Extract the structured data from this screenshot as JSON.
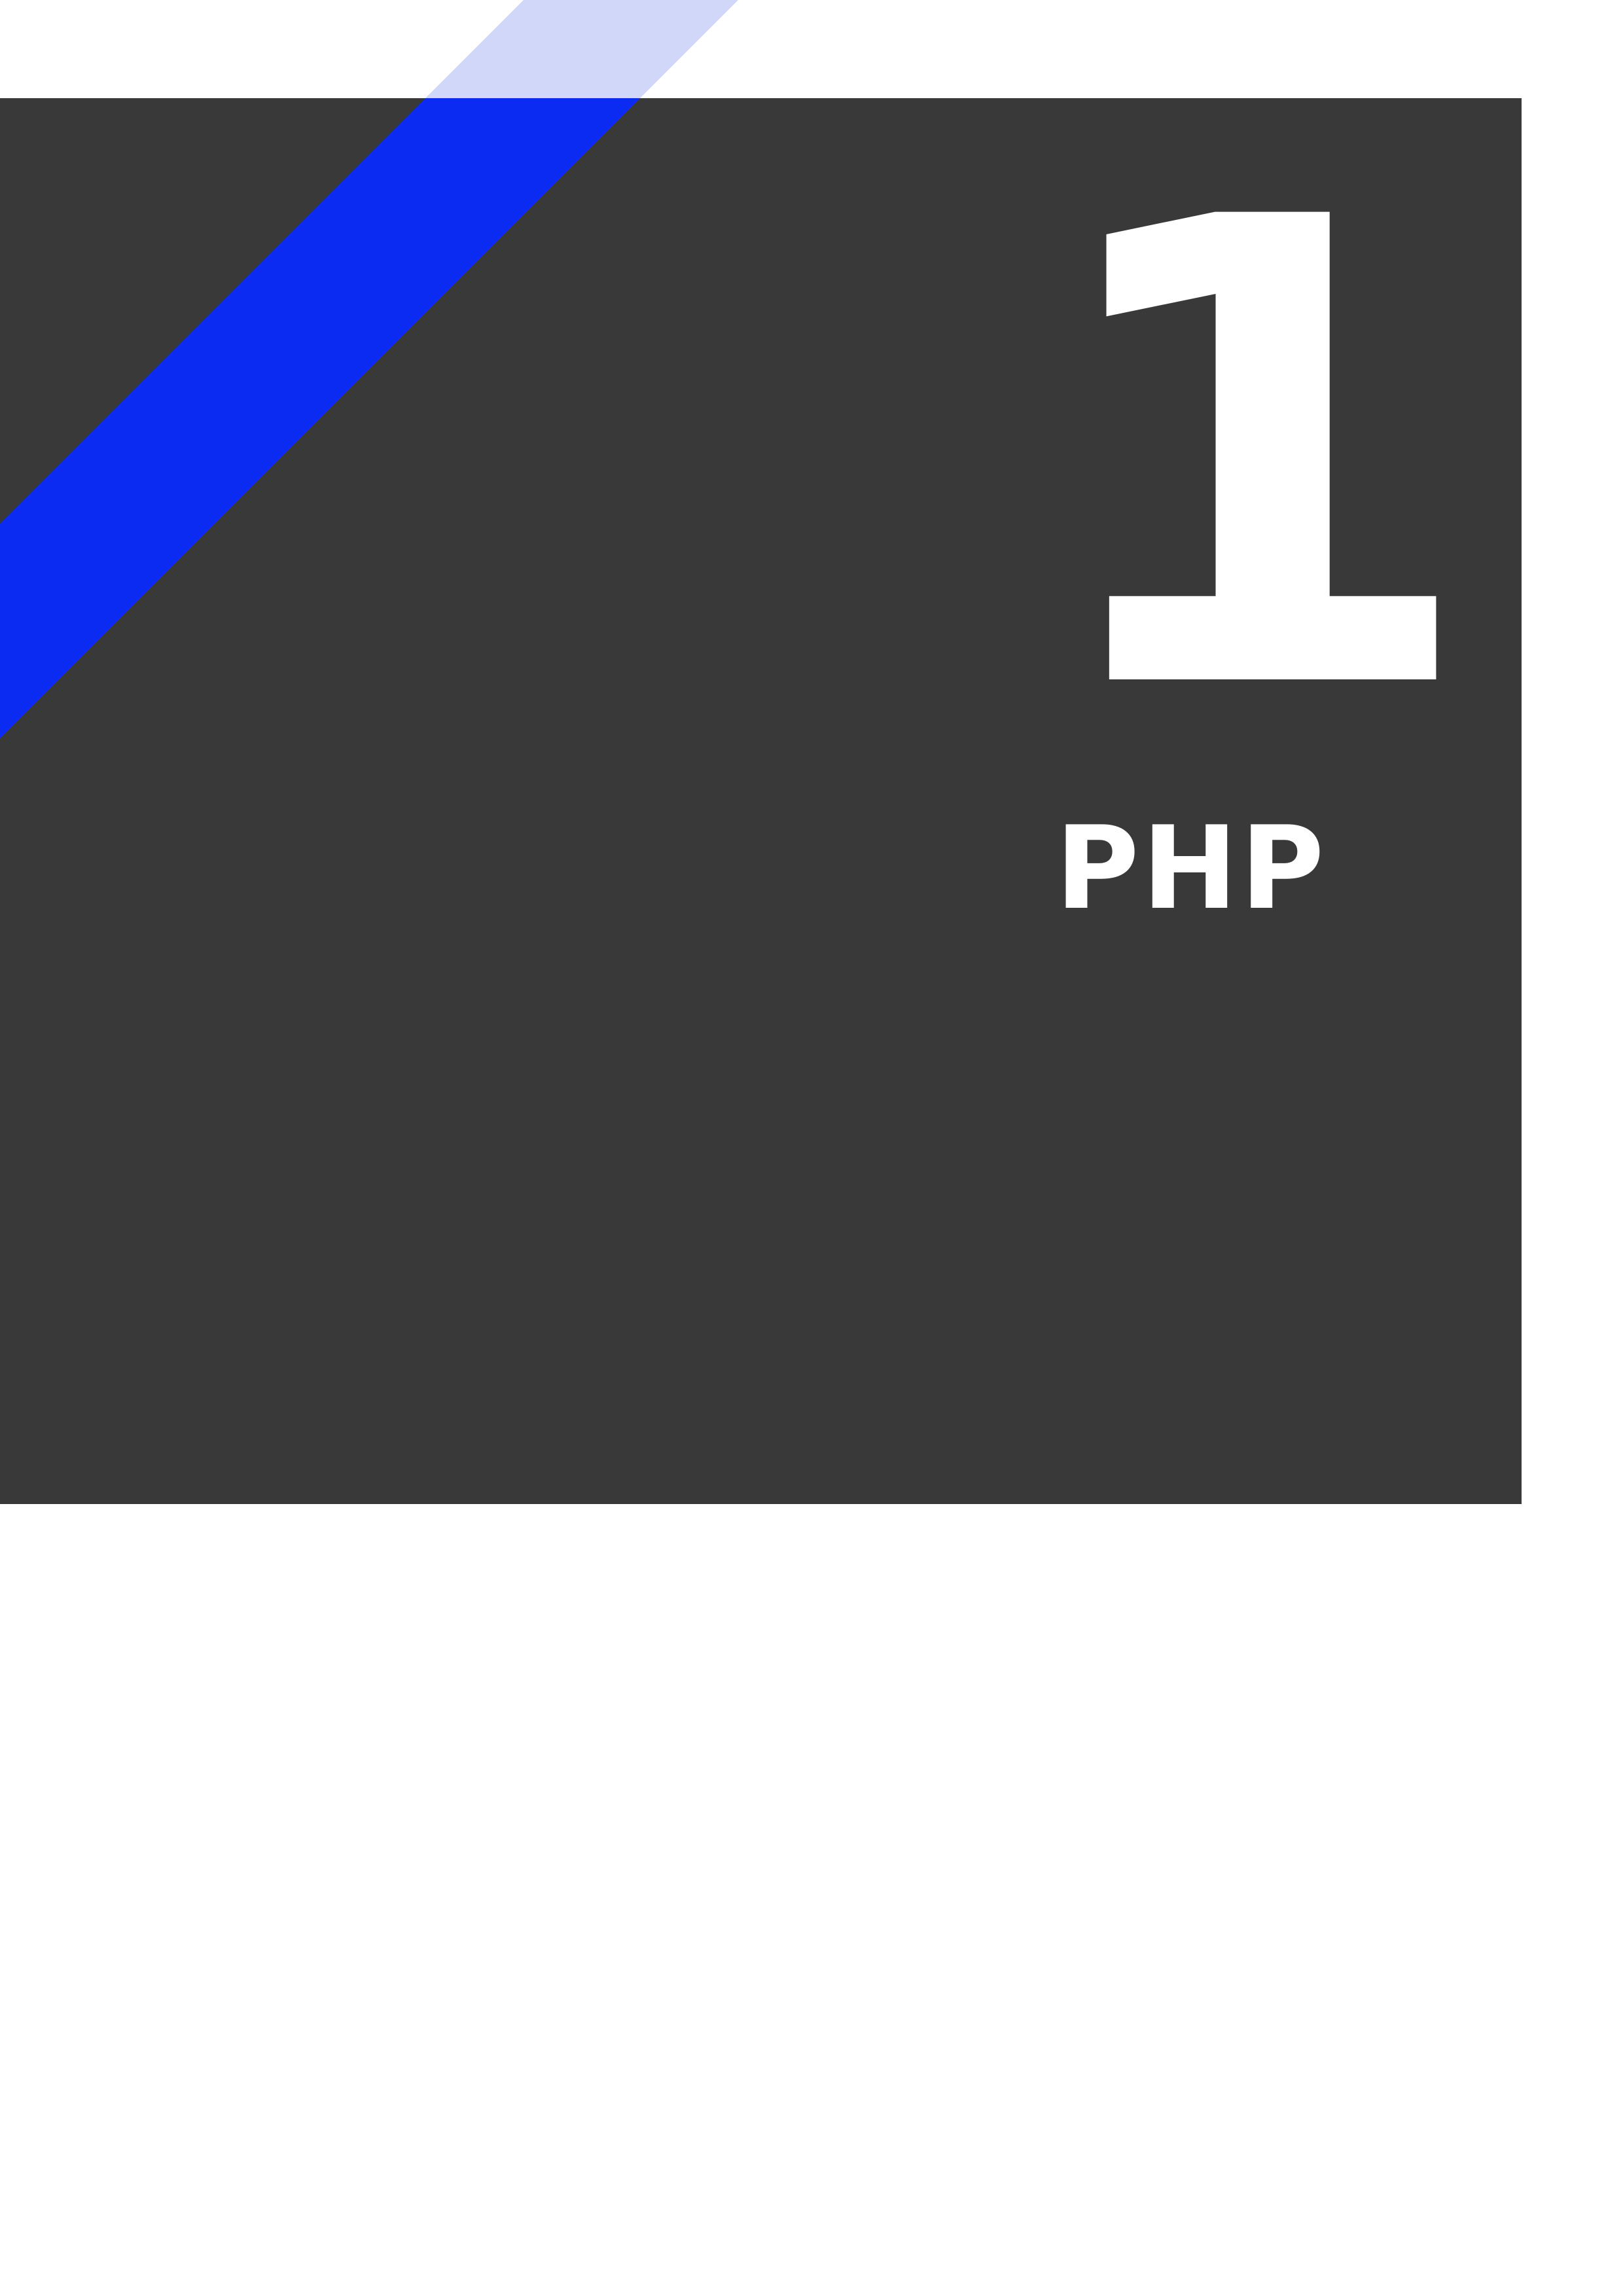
{
  "chapter": {
    "number": "1",
    "title": "PHP"
  },
  "colors": {
    "panel": "#3a393a",
    "stripe": "#0b2bf2",
    "stripe_light": "#d0d7f9",
    "text": "#ffffff",
    "page": "#ffffff"
  }
}
